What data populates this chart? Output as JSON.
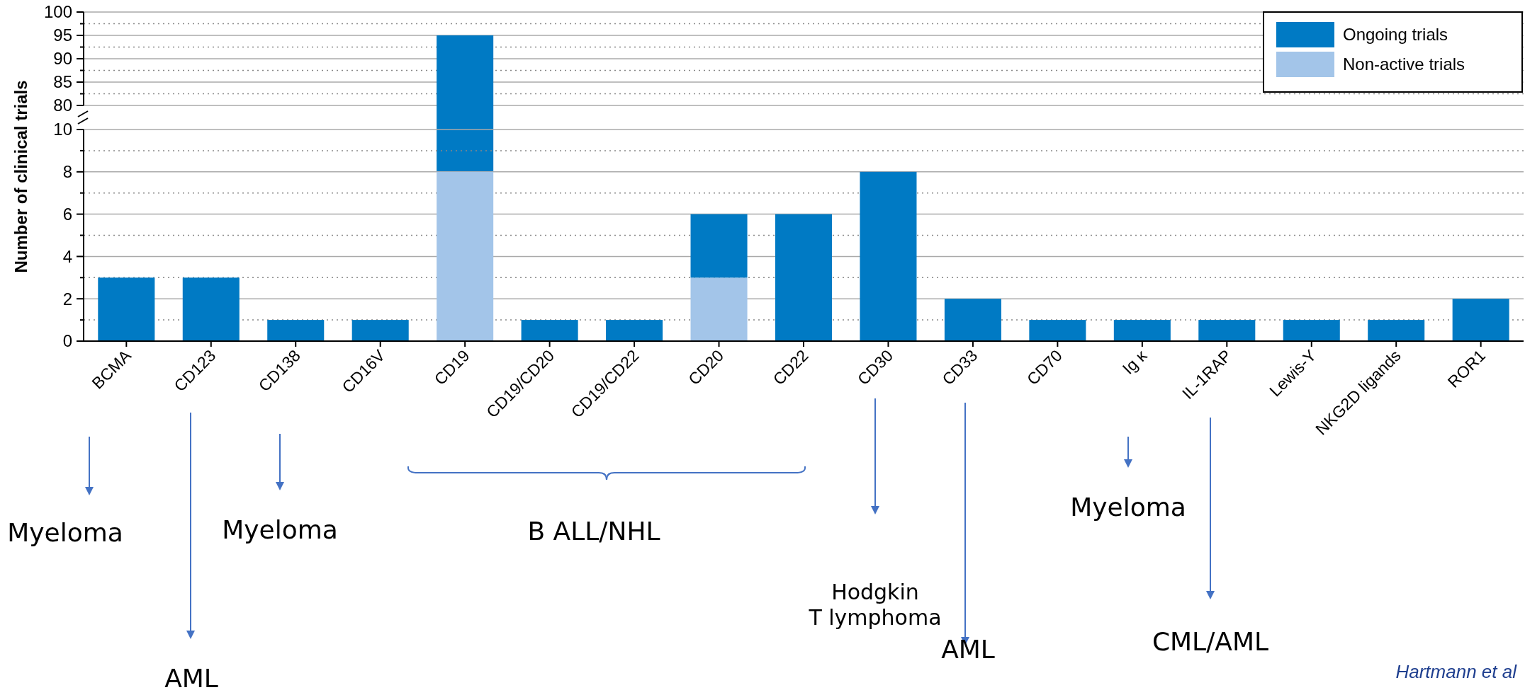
{
  "chart_data": [
    {
      "type": "bar",
      "categories": [
        null,
        null,
        null,
        null,
        null,
        null,
        null,
        null,
        null,
        null,
        null,
        null,
        null,
        null,
        null,
        null,
        null
      ],
      "series": [
        {
          "color": "#007ac4",
          "base": [
            null,
            null,
            null,
            null,
            8,
            null,
            null,
            null,
            null,
            null,
            null,
            null,
            null,
            null,
            null,
            null,
            null
          ],
          "values": [
            null,
            null,
            null,
            null,
            87,
            null,
            null,
            null,
            null,
            null,
            null,
            null,
            null,
            null,
            null,
            null,
            null
          ]
        }
      ],
      "ylim": [
        80,
        100
      ],
      "yticks": [
        80,
        {
          "value": 82.5,
          "label": null
        },
        85,
        {
          "value": 87.5,
          "label": null
        },
        90,
        {
          "value": 92.5,
          "label": null
        },
        95,
        {
          "value": 97.5,
          "label": null
        },
        100
      ],
      "grid": "y",
      "tick_labels": "y"
    },
    {
      "type": "bar",
      "stacked": true,
      "ylabel": "Number of clinical trials",
      "categories": [
        "BCMA",
        "CD123",
        "CD138",
        "CD16V",
        "CD19",
        "CD19/CD20",
        "CD19/CD22",
        "CD20",
        "CD22",
        "CD30",
        "CD33",
        "CD70",
        "Ig κ",
        "IL-1RAP",
        "Lewis-Y",
        "NKG2D ligands",
        "ROR1"
      ],
      "series": [
        {
          "name": "Non-active trials",
          "color": "#a3c5e9",
          "values": [
            0,
            0,
            0,
            0,
            8,
            0,
            0,
            3,
            0,
            0,
            0,
            0,
            0,
            0,
            0,
            0,
            0
          ]
        },
        {
          "name": "Ongoing trials",
          "color": "#007ac4",
          "values": [
            3,
            3,
            1,
            1,
            null,
            1,
            1,
            3,
            6,
            8,
            2,
            1,
            1,
            1,
            1,
            1,
            2
          ]
        }
      ],
      "ylim": [
        0,
        10
      ],
      "yticks": [
        0,
        {
          "value": 1,
          "label": null
        },
        2,
        {
          "value": 3,
          "label": null
        },
        4,
        {
          "value": 5,
          "label": null
        },
        6,
        {
          "value": 7,
          "label": null
        },
        8,
        {
          "value": 9,
          "label": null
        },
        10
      ],
      "grid": "y",
      "legend": "top right",
      "annotations": [
        "Myeloma",
        "AML",
        "Myeloma",
        "B ALL/NHL",
        "Hodgkin\nT lymphoma",
        "AML",
        "Myeloma",
        "CML/AML",
        "Hartmann et al"
      ]
    }
  ]
}
